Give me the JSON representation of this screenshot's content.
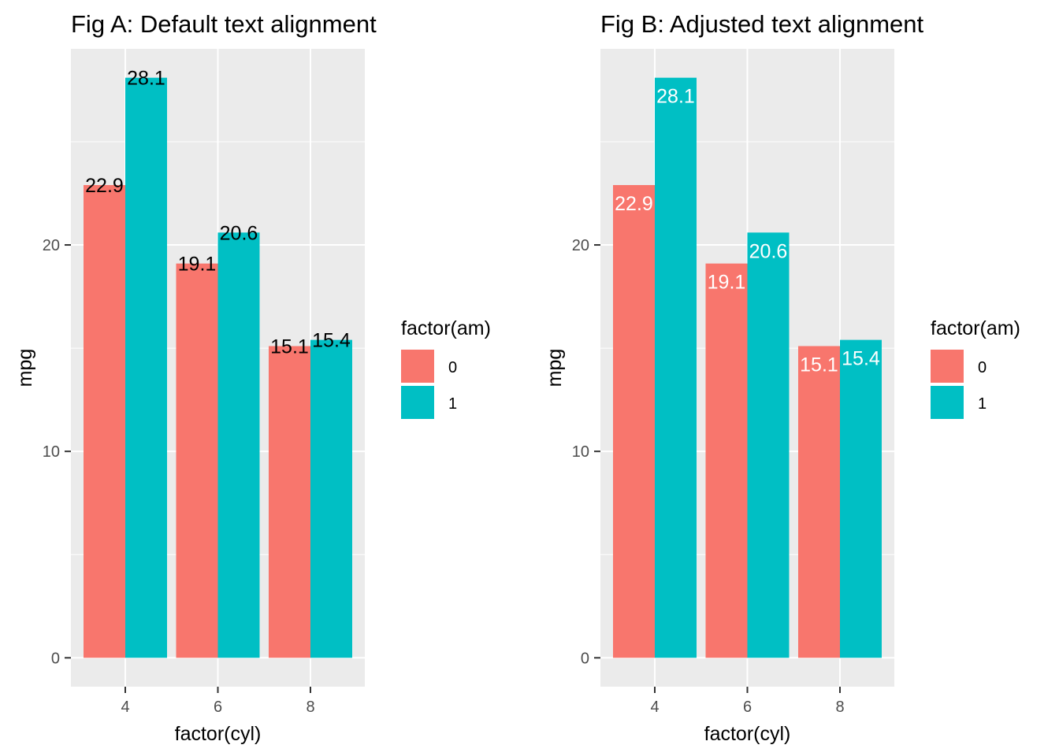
{
  "chart_data": [
    {
      "type": "bar",
      "title": "Fig A: Default text alignment",
      "xlabel": "factor(cyl)",
      "ylabel": "mpg",
      "categories": [
        "4",
        "6",
        "8"
      ],
      "ylim": [
        -1.4,
        29.5
      ],
      "yticks": [
        0,
        10,
        20
      ],
      "grid": true,
      "label_placement": "default",
      "label_color": "#000000",
      "legend": {
        "title": "factor(am)",
        "position": "right"
      },
      "series": [
        {
          "name": "0",
          "color": "#F8766D",
          "values": [
            22.9,
            19.1,
            15.1
          ]
        },
        {
          "name": "1",
          "color": "#00BFC4",
          "values": [
            28.1,
            20.6,
            15.4
          ]
        }
      ]
    },
    {
      "type": "bar",
      "title": "Fig B: Adjusted text alignment",
      "xlabel": "factor(cyl)",
      "ylabel": "mpg",
      "categories": [
        "4",
        "6",
        "8"
      ],
      "ylim": [
        -1.4,
        29.5
      ],
      "yticks": [
        0,
        10,
        20
      ],
      "grid": true,
      "label_placement": "inside-top",
      "label_color": "#ffffff",
      "legend": {
        "title": "factor(am)",
        "position": "right"
      },
      "series": [
        {
          "name": "0",
          "color": "#F8766D",
          "values": [
            22.9,
            19.1,
            15.1
          ]
        },
        {
          "name": "1",
          "color": "#00BFC4",
          "values": [
            28.1,
            20.6,
            15.4
          ]
        }
      ]
    }
  ]
}
